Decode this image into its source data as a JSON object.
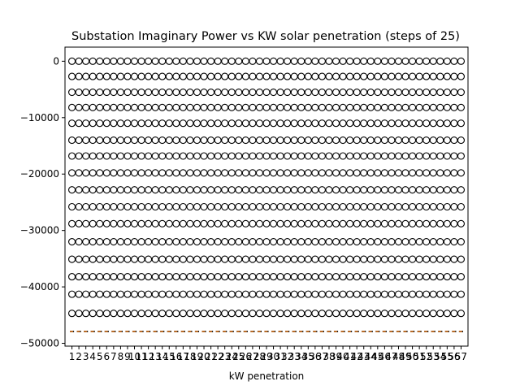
{
  "chart_data": {
    "type": "box",
    "title": "Substation Imaginary Power vs KW solar penetration (steps of 25)",
    "xlabel": "kW penetration",
    "ylabel": "",
    "categories": [
      "1",
      "2",
      "3",
      "4",
      "5",
      "6",
      "7",
      "8",
      "9",
      "10",
      "11",
      "12",
      "13",
      "14",
      "15",
      "16",
      "17",
      "18",
      "19",
      "20",
      "21",
      "22",
      "23",
      "24",
      "25",
      "26",
      "27",
      "28",
      "29",
      "30",
      "31",
      "32",
      "33",
      "34",
      "35",
      "36",
      "37",
      "38",
      "39",
      "40",
      "41",
      "42",
      "43",
      "44",
      "45",
      "46",
      "47",
      "48",
      "49",
      "50",
      "51",
      "52",
      "53",
      "54",
      "55",
      "56",
      "57"
    ],
    "ylim": [
      -50500,
      2500
    ],
    "yticks": [
      0,
      -10000,
      -20000,
      -30000,
      -40000,
      -50000
    ],
    "ytick_labels": [
      "0",
      "−10000",
      "−20000",
      "−30000",
      "−40000",
      "−50000"
    ],
    "median": -47900,
    "box_q1": -47950,
    "box_q3": -47850,
    "outliers": [
      0,
      -2700,
      -5500,
      -8200,
      -11000,
      -14000,
      -16800,
      -19800,
      -22800,
      -25800,
      -28800,
      -32000,
      -35100,
      -38200,
      -41300,
      -44700
    ],
    "median_color": "#ff7f0e",
    "grid": false,
    "legend": "none"
  }
}
